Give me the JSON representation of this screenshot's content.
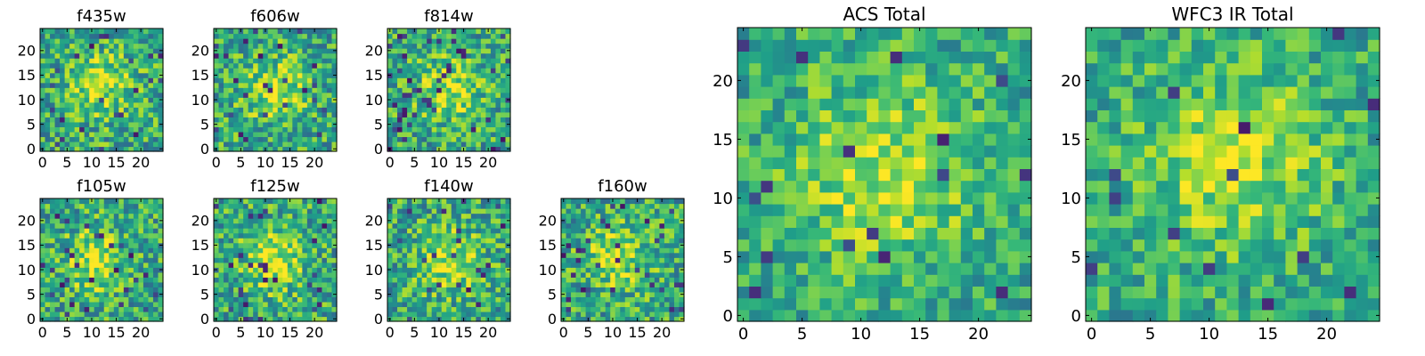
{
  "chart_data": [
    {
      "type": "heatmap",
      "title": "f435w",
      "xlim": [
        0,
        25
      ],
      "ylim": [
        0,
        25
      ],
      "xticks": [
        0,
        5,
        10,
        15,
        20
      ],
      "yticks": [
        0,
        5,
        10,
        15,
        20
      ],
      "grid": false,
      "legend": "none",
      "colormap": "viridis",
      "peak": [
        12,
        13
      ]
    },
    {
      "type": "heatmap",
      "title": "f606w",
      "xlim": [
        0,
        25
      ],
      "ylim": [
        0,
        25
      ],
      "xticks": [
        0,
        5,
        10,
        15,
        20
      ],
      "yticks": [
        0,
        5,
        10,
        15,
        20
      ],
      "grid": false,
      "legend": "none",
      "colormap": "viridis",
      "peak": [
        12,
        12
      ]
    },
    {
      "type": "heatmap",
      "title": "f814w",
      "xlim": [
        0,
        25
      ],
      "ylim": [
        0,
        25
      ],
      "xticks": [
        0,
        5,
        10,
        15,
        20
      ],
      "yticks": [
        0,
        5,
        10,
        15,
        20
      ],
      "grid": false,
      "legend": "none",
      "colormap": "viridis",
      "peak": [
        12,
        12
      ]
    },
    {
      "type": "heatmap",
      "title": "f105w",
      "xlim": [
        0,
        25
      ],
      "ylim": [
        0,
        25
      ],
      "xticks": [
        0,
        5,
        10,
        15,
        20
      ],
      "yticks": [
        0,
        5,
        10,
        15,
        20
      ],
      "grid": false,
      "legend": "none",
      "colormap": "viridis",
      "peak": [
        11,
        12
      ]
    },
    {
      "type": "heatmap",
      "title": "f125w",
      "xlim": [
        0,
        25
      ],
      "ylim": [
        0,
        25
      ],
      "xticks": [
        0,
        5,
        10,
        15,
        20
      ],
      "yticks": [
        0,
        5,
        10,
        15,
        20
      ],
      "grid": false,
      "legend": "none",
      "colormap": "viridis",
      "peak": [
        12,
        12
      ]
    },
    {
      "type": "heatmap",
      "title": "f140w",
      "xlim": [
        0,
        25
      ],
      "ylim": [
        0,
        25
      ],
      "xticks": [
        0,
        5,
        10,
        15,
        20
      ],
      "yticks": [
        0,
        5,
        10,
        15,
        20
      ],
      "grid": false,
      "legend": "none",
      "colormap": "viridis",
      "peak": [
        12,
        12
      ]
    },
    {
      "type": "heatmap",
      "title": "f160w",
      "xlim": [
        0,
        25
      ],
      "ylim": [
        0,
        25
      ],
      "xticks": [
        0,
        5,
        10,
        15,
        20
      ],
      "yticks": [
        0,
        5,
        10,
        15,
        20
      ],
      "grid": false,
      "legend": "none",
      "colormap": "viridis",
      "peak": [
        11,
        13
      ]
    },
    {
      "type": "heatmap",
      "title": "ACS Total",
      "xlim": [
        0,
        25
      ],
      "ylim": [
        0,
        25
      ],
      "xticks": [
        0,
        5,
        10,
        15,
        20
      ],
      "yticks": [
        0,
        5,
        10,
        15,
        20
      ],
      "grid": false,
      "legend": "none",
      "colormap": "viridis",
      "peak": [
        12,
        12
      ]
    },
    {
      "type": "heatmap",
      "title": "WFC3 IR Total",
      "xlim": [
        0,
        25
      ],
      "ylim": [
        0,
        25
      ],
      "xticks": [
        0,
        5,
        10,
        15,
        20
      ],
      "yticks": [
        0,
        5,
        10,
        15,
        20
      ],
      "grid": false,
      "legend": "none",
      "colormap": "viridis",
      "peak": [
        12,
        13
      ]
    }
  ]
}
